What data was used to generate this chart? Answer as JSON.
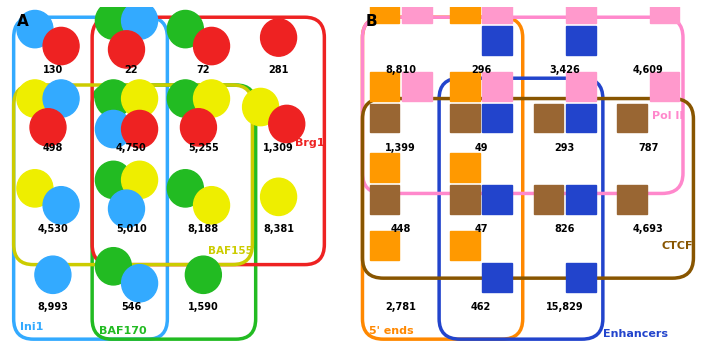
{
  "panel_A": {
    "title": "A",
    "values": [
      [
        "130",
        "22",
        "72",
        "281"
      ],
      [
        "498",
        "4,750",
        "5,255",
        "1,309"
      ],
      [
        "4,530",
        "5,010",
        "8,188",
        "8,381"
      ],
      [
        "8,993",
        "546",
        "1,590",
        ""
      ]
    ],
    "dots": [
      [
        [
          "blue",
          "red"
        ],
        [
          "green",
          "blue",
          "red"
        ],
        [
          "green",
          "red"
        ],
        [
          "red"
        ]
      ],
      [
        [
          "yellow",
          "blue",
          "red"
        ],
        [
          "green",
          "yellow",
          "blue",
          "red"
        ],
        [
          "green",
          "yellow",
          "red"
        ],
        [
          "yellow",
          "red"
        ]
      ],
      [
        [
          "yellow",
          "blue"
        ],
        [
          "green",
          "yellow",
          "blue"
        ],
        [
          "green",
          "yellow"
        ],
        [
          "yellow"
        ]
      ],
      [
        [
          "blue"
        ],
        [
          "green",
          "blue"
        ],
        [
          "green"
        ],
        []
      ]
    ],
    "dot_colors": {
      "red": "#EE2222",
      "blue": "#33AAFF",
      "green": "#22BB22",
      "yellow": "#EEEE00"
    },
    "borders": {
      "Ini1": {
        "color": "#33AAFF"
      },
      "BAF170": {
        "color": "#22BB22"
      },
      "Brg1": {
        "color": "#EE2222"
      },
      "BAF155": {
        "color": "#CCCC00"
      }
    }
  },
  "panel_B": {
    "title": "B",
    "values": [
      [
        "8,810",
        "296",
        "3,426",
        "4,609"
      ],
      [
        "1,399",
        "49",
        "293",
        "787"
      ],
      [
        "448",
        "47",
        "826",
        "4,693"
      ],
      [
        "2,781",
        "462",
        "15,829",
        ""
      ]
    ],
    "squares": [
      [
        [
          "orange",
          "pink"
        ],
        [
          "orange",
          "blue",
          "pink"
        ],
        [
          "blue",
          "pink"
        ],
        [
          "pink"
        ]
      ],
      [
        [
          "brown",
          "orange",
          "pink"
        ],
        [
          "brown",
          "orange",
          "blue",
          "pink"
        ],
        [
          "brown",
          "blue",
          "pink"
        ],
        [
          "brown",
          "pink"
        ]
      ],
      [
        [
          "brown",
          "orange"
        ],
        [
          "brown",
          "orange",
          "blue"
        ],
        [
          "brown",
          "blue"
        ],
        [
          "brown"
        ]
      ],
      [
        [
          "orange"
        ],
        [
          "orange",
          "blue"
        ],
        [
          "blue"
        ],
        []
      ]
    ],
    "sq_colors": {
      "orange": "#FF9900",
      "pink": "#FF99CC",
      "brown": "#996633",
      "blue": "#2244CC"
    },
    "borders": {
      "5ends": {
        "color": "#FF8800"
      },
      "Enhancers": {
        "color": "#2244CC"
      },
      "PolII": {
        "color": "#FF88CC"
      },
      "CTCF": {
        "color": "#885500"
      }
    }
  }
}
